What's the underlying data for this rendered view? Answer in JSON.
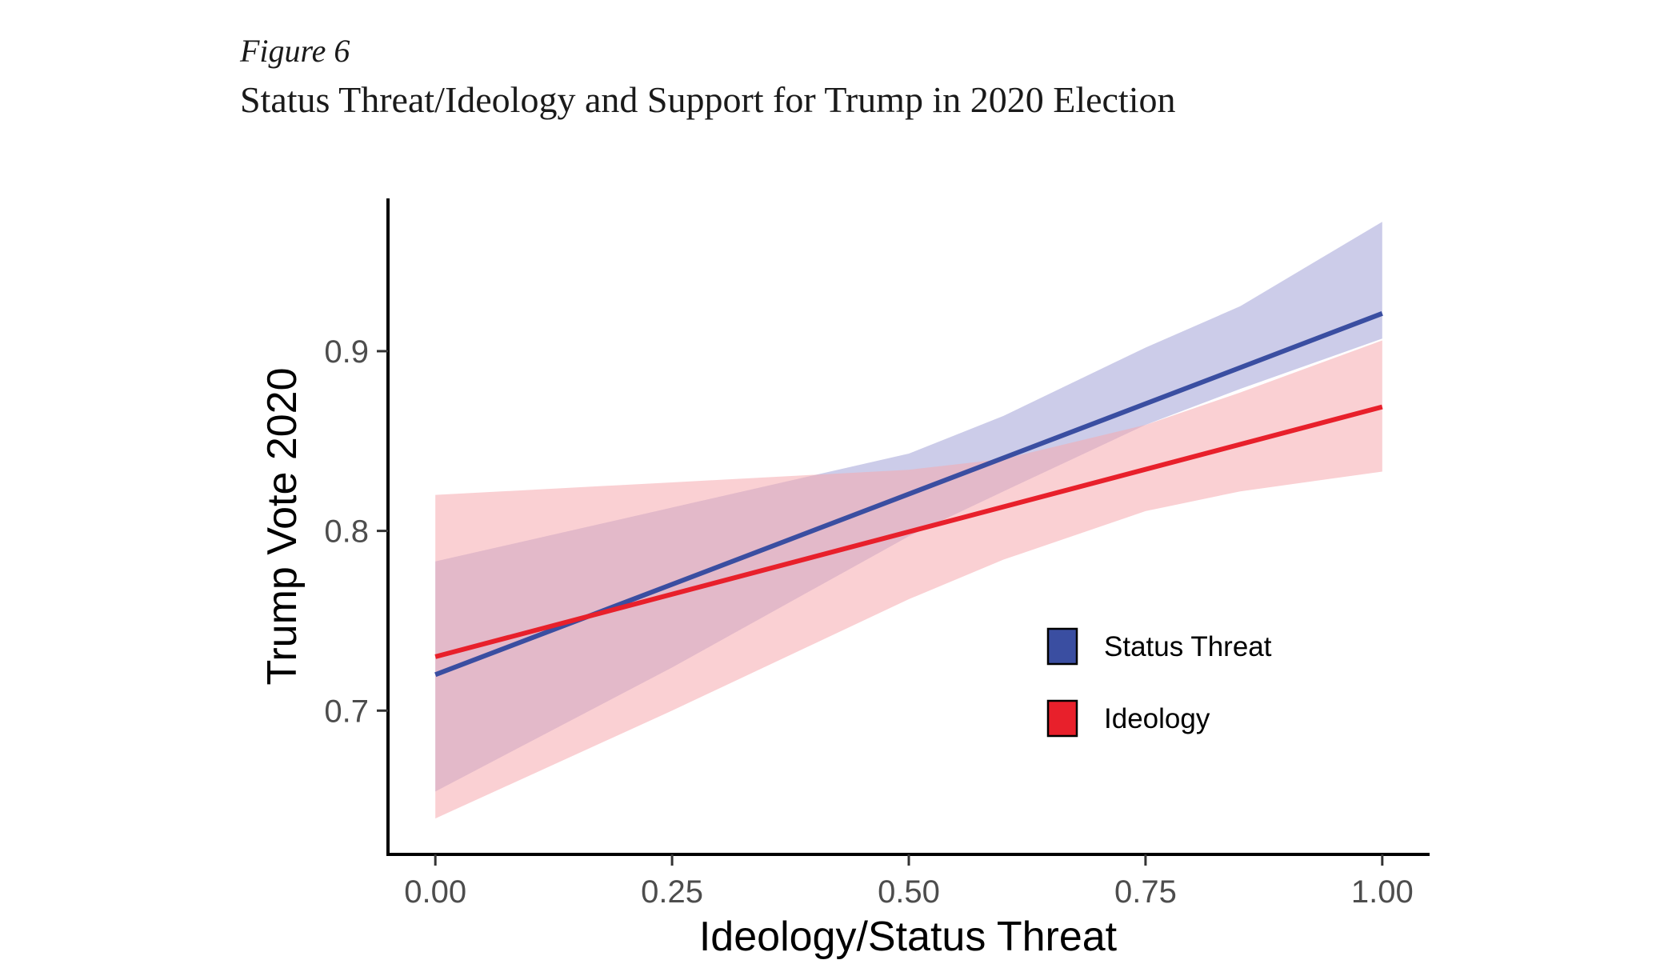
{
  "figure": {
    "label": "Figure 6",
    "title": "Status Threat/Ideology and Support for Trump in 2020 Election"
  },
  "chart_data": {
    "type": "line",
    "xlabel": "Ideology/Status Threat",
    "ylabel": "Trump Vote 2020",
    "xlim": [
      -0.05,
      1.05
    ],
    "ylim": [
      0.62,
      0.985
    ],
    "x_ticks": [
      0.0,
      0.25,
      0.5,
      0.75,
      1.0
    ],
    "x_tick_labels": [
      "0.00",
      "0.25",
      "0.50",
      "0.75",
      "1.00"
    ],
    "y_ticks": [
      0.7,
      0.8,
      0.9
    ],
    "y_tick_labels": [
      "0.7",
      "0.8",
      "0.9"
    ],
    "grid": false,
    "legend_position": "right",
    "series": [
      {
        "name": "Status Threat",
        "color": "#3a4ea1",
        "band_color": "#b7b6e0",
        "x": [
          0.0,
          1.0
        ],
        "y": [
          0.72,
          0.921
        ],
        "ci_x": [
          0.0,
          0.25,
          0.5,
          0.6,
          0.75,
          0.85,
          1.0
        ],
        "ci_lower": [
          0.655,
          0.724,
          0.797,
          0.822,
          0.859,
          0.879,
          0.907
        ],
        "ci_upper": [
          0.783,
          0.813,
          0.843,
          0.864,
          0.902,
          0.925,
          0.972
        ]
      },
      {
        "name": "Ideology",
        "color": "#e8202b",
        "band_color": "#f6a9ae",
        "x": [
          0.0,
          1.0
        ],
        "y": [
          0.73,
          0.869
        ],
        "ci_x": [
          0.0,
          0.25,
          0.5,
          0.6,
          0.75,
          0.85,
          1.0
        ],
        "ci_lower": [
          0.64,
          0.7,
          0.762,
          0.784,
          0.811,
          0.822,
          0.833
        ],
        "ci_upper": [
          0.82,
          0.827,
          0.834,
          0.84,
          0.859,
          0.877,
          0.906
        ]
      }
    ]
  }
}
